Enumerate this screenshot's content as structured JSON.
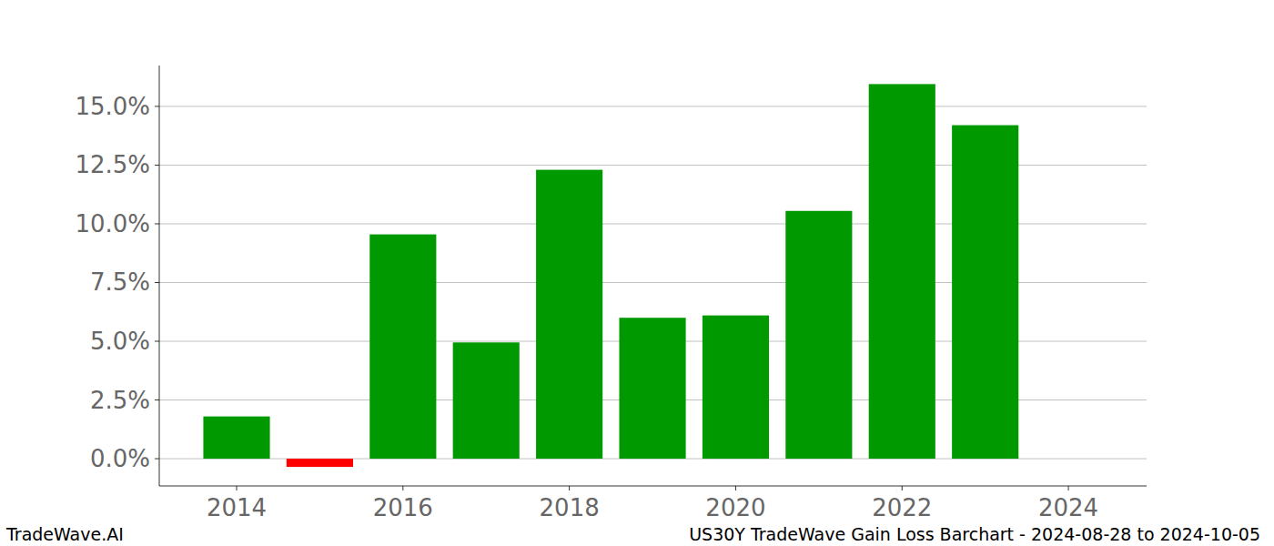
{
  "chart_data": {
    "type": "bar",
    "title": "US30Y TradeWave Gain Loss Barchart - 2024-08-28 to 2024-10-05",
    "annotations": [
      "TradeWave.AI"
    ],
    "x": [
      2014,
      2015,
      2016,
      2017,
      2018,
      2019,
      2020,
      2021,
      2022,
      2023
    ],
    "values": [
      1.8,
      -0.35,
      9.55,
      4.95,
      12.3,
      6.0,
      6.1,
      10.55,
      15.95,
      14.2
    ],
    "colors": [
      "#009900",
      "#ff0000",
      "#009900",
      "#009900",
      "#009900",
      "#009900",
      "#009900",
      "#009900",
      "#009900",
      "#009900"
    ],
    "xlim": [
      2013.07,
      2024.94
    ],
    "xticks": [
      2014,
      2016,
      2018,
      2020,
      2022,
      2024
    ],
    "ylim": [
      -1.16,
      16.74
    ],
    "yticks": [
      {
        "value": 0,
        "label": "0.0%"
      },
      {
        "value": 2.5,
        "label": "2.5%"
      },
      {
        "value": 5,
        "label": "5.0%"
      },
      {
        "value": 7.5,
        "label": "7.5%"
      },
      {
        "value": 10,
        "label": "10.0%"
      },
      {
        "value": 12.5,
        "label": "12.5%"
      },
      {
        "value": 15,
        "label": "15.0%"
      }
    ],
    "grid": true
  }
}
